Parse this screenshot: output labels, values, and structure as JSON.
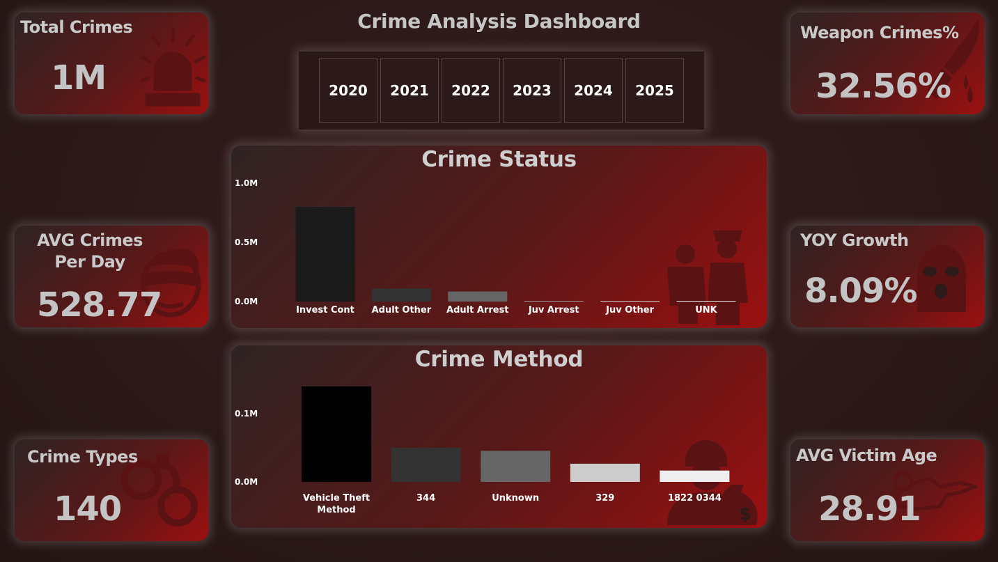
{
  "dashboard": {
    "title": "Crime Analysis Dashboard"
  },
  "years": [
    "2020",
    "2021",
    "2022",
    "2023",
    "2024",
    "2025"
  ],
  "kpis": {
    "total_crimes": {
      "label": "Total Crimes",
      "value": "1M"
    },
    "avg_per_day": {
      "label": "AVG Crimes Per Day",
      "value": "528.77"
    },
    "crime_types": {
      "label": "Crime Types",
      "value": "140"
    },
    "weapon_crimes": {
      "label": "Weapon Crimes%",
      "value": "32.56%"
    },
    "yoy_growth": {
      "label": "YOY Growth",
      "value": "8.09%"
    },
    "avg_victim_age": {
      "label": "AVG Victim Age",
      "value": "28.91"
    }
  },
  "charts": {
    "status": {
      "title": "Crime Status",
      "ticks": [
        "1.0M",
        "0.5M",
        "0.0M"
      ]
    },
    "method": {
      "title": "Crime Method",
      "ticks": [
        "0.1M",
        "0.0M"
      ]
    }
  },
  "colors": {
    "icon": "#5a1212",
    "card_dark": "#2f2323",
    "card_red": "#9b1010"
  },
  "icons": {
    "total_crimes": "siren-icon",
    "avg_per_day": "masked-thief-icon",
    "crime_types": "handcuffs-icon",
    "weapon_crimes": "bloody-knife-icon",
    "yoy_growth": "balaclava-icon",
    "avg_victim_age": "body-outline-icon",
    "status": "police-arrest-icon",
    "method": "robber-money-bag-icon"
  },
  "chart_data": [
    {
      "type": "bar",
      "title": "Crime Status",
      "categories": [
        "Invest Cont",
        "Adult Other",
        "Adult Arrest",
        "Juv Arrest",
        "Juv Other",
        "UNK"
      ],
      "values": [
        800000,
        110000,
        85000,
        3000,
        2000,
        500
      ],
      "colors": [
        "#1a1a1a",
        "#333333",
        "#666666",
        "#9a9a9a",
        "#cccccc",
        "#f0f0f0"
      ],
      "ylim": [
        0,
        1000000
      ],
      "yticks": [
        0,
        500000,
        1000000
      ],
      "xlabel": "",
      "ylabel": ""
    },
    {
      "type": "bar",
      "title": "Crime Method",
      "categories": [
        "Vehicle Theft Method",
        "344",
        "Unknown",
        "329",
        "1822 0344"
      ],
      "values": [
        126000,
        45000,
        41000,
        24000,
        15000
      ],
      "colors": [
        "#000000",
        "#333333",
        "#666666",
        "#cccccc",
        "#eeeeee"
      ],
      "ylim": [
        0,
        180000
      ],
      "yticks": [
        0,
        100000
      ],
      "xlabel": "",
      "ylabel": ""
    }
  ]
}
